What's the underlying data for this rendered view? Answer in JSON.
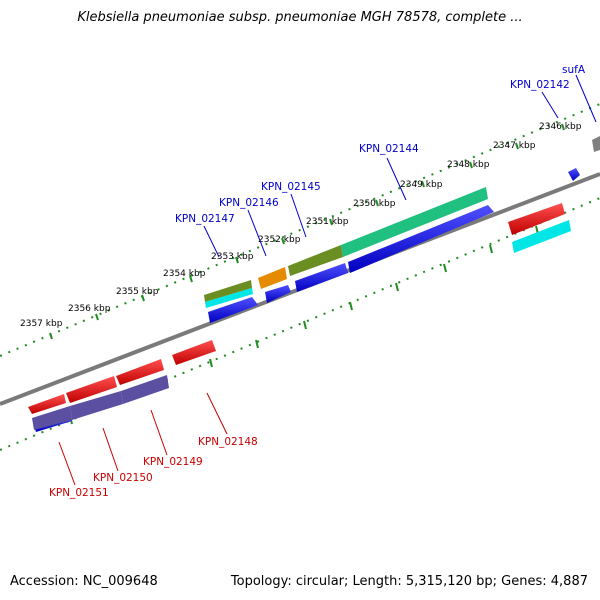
{
  "title": "Klebsiella pneumoniae subsp. pneumoniae MGH 78578, complete ...",
  "footer": {
    "accession": "Accession: NC_009648",
    "info": "Topology: circular; Length: 5,315,120 bp; Genes: 4,887"
  },
  "ruler_ticks": [
    {
      "label": "2357 kbp"
    },
    {
      "label": "2356 kbp"
    },
    {
      "label": "2355 kbp"
    },
    {
      "label": "2354 kbp"
    },
    {
      "label": "2353 kbp"
    },
    {
      "label": "2352 kbp"
    },
    {
      "label": "2351 kbp"
    },
    {
      "label": "2350 kbp"
    },
    {
      "label": "2349 kbp"
    },
    {
      "label": "2348 kbp"
    },
    {
      "label": "2347 kbp"
    },
    {
      "label": "2346 kbp"
    }
  ],
  "top_gene_labels": [
    {
      "name": "sufA",
      "color": "#0000cc"
    },
    {
      "name": "KPN_02142",
      "color": "#0000cc"
    },
    {
      "name": "KPN_02144",
      "color": "#0000cc"
    },
    {
      "name": "KPN_02145",
      "color": "#0000cc"
    },
    {
      "name": "KPN_02146",
      "color": "#0000cc"
    },
    {
      "name": "KPN_02147",
      "color": "#0000cc"
    }
  ],
  "bottom_gene_labels": [
    {
      "name": "KPN_02148",
      "color": "#cc0000"
    },
    {
      "name": "KPN_02149",
      "color": "#cc0000"
    },
    {
      "name": "KPN_02150",
      "color": "#cc0000"
    },
    {
      "name": "KPN_02151",
      "color": "#cc0000"
    }
  ],
  "colors": {
    "backbone": "#808080",
    "ruler_dots": "#228b22",
    "forward_gene": "#0000ee",
    "reverse_gene": "#ee0000",
    "cog_teal": "#20c080",
    "cog_olive": "#6b8e23",
    "cog_orange": "#e68a00",
    "cog_cyan": "#00e5e5",
    "cog_slateblue": "#5a4fa0",
    "cog_gray": "#808080"
  }
}
